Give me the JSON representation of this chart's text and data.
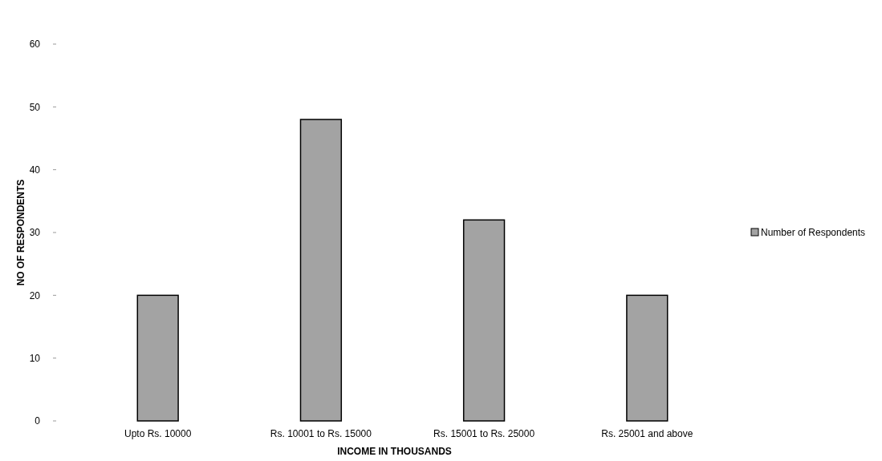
{
  "chart_data": {
    "type": "bar",
    "xlabel": "INCOME IN THOUSANDS",
    "ylabel": "NO OF RESPONDENTS",
    "categories": [
      "Upto Rs. 10000",
      "Rs. 10001 to Rs. 15000",
      "Rs. 15001 to Rs. 25000",
      "Rs. 25001 and above"
    ],
    "series": [
      {
        "name": "Number of Respondents",
        "color": "#a3a3a3",
        "values": [
          20,
          48,
          32,
          20
        ]
      }
    ],
    "ylim": [
      0,
      60
    ],
    "yticks": [
      0,
      10,
      20,
      30,
      40,
      50,
      60
    ],
    "legend": "right",
    "grid": false
  }
}
